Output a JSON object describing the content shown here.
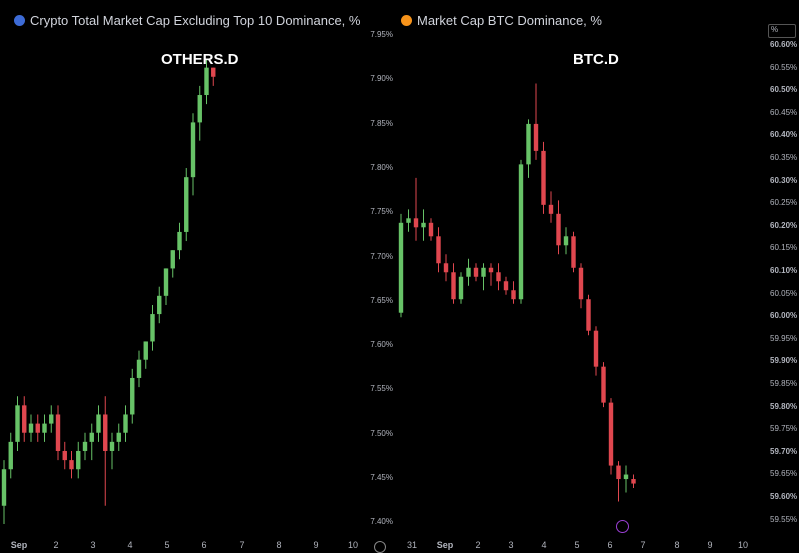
{
  "left": {
    "header": "Crypto Total Market Cap Excluding Top 10 Dominance, % ·",
    "label": "OTHERS.D",
    "x_ticks": [
      "Sep",
      "2",
      "3",
      "4",
      "5",
      "6",
      "7",
      "8",
      "9",
      "10"
    ]
  },
  "right": {
    "header": "Market Cap BTC Dominance, %",
    "label": "BTC.D",
    "x_ticks": [
      "31",
      "Sep",
      "2",
      "3",
      "4",
      "5",
      "6",
      "7",
      "8",
      "9",
      "10"
    ],
    "unit": "%"
  },
  "colors": {
    "up": "#67c267",
    "down": "#e0474f"
  },
  "chart_data": [
    {
      "type": "candlestick",
      "name": "OTHERS.D",
      "x_ticks": [
        "Sep",
        "2",
        "3",
        "4",
        "5",
        "6",
        "7",
        "8",
        "9",
        "10"
      ],
      "candles": [
        {
          "o": 7.42,
          "h": 7.47,
          "l": 7.4,
          "c": 7.46
        },
        {
          "o": 7.46,
          "h": 7.5,
          "l": 7.45,
          "c": 7.49
        },
        {
          "o": 7.49,
          "h": 7.54,
          "l": 7.48,
          "c": 7.53
        },
        {
          "o": 7.53,
          "h": 7.54,
          "l": 7.49,
          "c": 7.5
        },
        {
          "o": 7.5,
          "h": 7.52,
          "l": 7.49,
          "c": 7.51
        },
        {
          "o": 7.51,
          "h": 7.52,
          "l": 7.49,
          "c": 7.5
        },
        {
          "o": 7.5,
          "h": 7.52,
          "l": 7.49,
          "c": 7.51
        },
        {
          "o": 7.51,
          "h": 7.53,
          "l": 7.5,
          "c": 7.52
        },
        {
          "o": 7.52,
          "h": 7.53,
          "l": 7.47,
          "c": 7.48
        },
        {
          "o": 7.48,
          "h": 7.49,
          "l": 7.46,
          "c": 7.47
        },
        {
          "o": 7.47,
          "h": 7.48,
          "l": 7.45,
          "c": 7.46
        },
        {
          "o": 7.46,
          "h": 7.49,
          "l": 7.45,
          "c": 7.48
        },
        {
          "o": 7.48,
          "h": 7.5,
          "l": 7.47,
          "c": 7.49
        },
        {
          "o": 7.49,
          "h": 7.51,
          "l": 7.47,
          "c": 7.5
        },
        {
          "o": 7.5,
          "h": 7.53,
          "l": 7.49,
          "c": 7.52
        },
        {
          "o": 7.52,
          "h": 7.54,
          "l": 7.42,
          "c": 7.48
        },
        {
          "o": 7.48,
          "h": 7.5,
          "l": 7.46,
          "c": 7.49
        },
        {
          "o": 7.49,
          "h": 7.51,
          "l": 7.48,
          "c": 7.5
        },
        {
          "o": 7.5,
          "h": 7.53,
          "l": 7.49,
          "c": 7.52
        },
        {
          "o": 7.52,
          "h": 7.57,
          "l": 7.51,
          "c": 7.56
        },
        {
          "o": 7.56,
          "h": 7.59,
          "l": 7.55,
          "c": 7.58
        },
        {
          "o": 7.58,
          "h": 7.6,
          "l": 7.57,
          "c": 7.6
        },
        {
          "o": 7.6,
          "h": 7.64,
          "l": 7.59,
          "c": 7.63
        },
        {
          "o": 7.63,
          "h": 7.66,
          "l": 7.62,
          "c": 7.65
        },
        {
          "o": 7.65,
          "h": 7.68,
          "l": 7.64,
          "c": 7.68
        },
        {
          "o": 7.68,
          "h": 7.7,
          "l": 7.67,
          "c": 7.7
        },
        {
          "o": 7.7,
          "h": 7.73,
          "l": 7.69,
          "c": 7.72
        },
        {
          "o": 7.72,
          "h": 7.79,
          "l": 7.71,
          "c": 7.78
        },
        {
          "o": 7.78,
          "h": 7.85,
          "l": 7.76,
          "c": 7.84
        },
        {
          "o": 7.84,
          "h": 7.88,
          "l": 7.82,
          "c": 7.87
        },
        {
          "o": 7.87,
          "h": 7.91,
          "l": 7.86,
          "c": 7.9
        },
        {
          "o": 7.9,
          "h": 7.9,
          "l": 7.88,
          "c": 7.89
        }
      ]
    },
    {
      "type": "candlestick",
      "name": "BTC.D",
      "x_ticks": [
        "31",
        "Sep",
        "2",
        "3",
        "4",
        "5",
        "6",
        "7",
        "8",
        "9",
        "10"
      ],
      "y_ticks": [
        "7.95%",
        "7.90%",
        "7.85%",
        "7.80%",
        "7.75%",
        "7.70%",
        "7.65%",
        "7.60%",
        "7.55%",
        "7.50%",
        "7.45%",
        "7.40%"
      ],
      "y_ticks_right": [
        "60.60%",
        "60.55%",
        "60.50%",
        "60.45%",
        "60.40%",
        "60.35%",
        "60.30%",
        "60.25%",
        "60.20%",
        "60.15%",
        "60.10%",
        "60.05%",
        "60.00%",
        "59.95%",
        "59.90%",
        "59.85%",
        "59.80%",
        "59.75%",
        "59.70%",
        "59.65%",
        "59.60%",
        "59.55%"
      ],
      "ylim": [
        59.53,
        60.62
      ],
      "candles": [
        {
          "o": 60.0,
          "h": 60.22,
          "l": 59.99,
          "c": 60.2
        },
        {
          "o": 60.2,
          "h": 60.23,
          "l": 60.18,
          "c": 60.21
        },
        {
          "o": 60.21,
          "h": 60.3,
          "l": 60.16,
          "c": 60.19
        },
        {
          "o": 60.19,
          "h": 60.23,
          "l": 60.16,
          "c": 60.2
        },
        {
          "o": 60.2,
          "h": 60.21,
          "l": 60.16,
          "c": 60.17
        },
        {
          "o": 60.17,
          "h": 60.19,
          "l": 60.09,
          "c": 60.11
        },
        {
          "o": 60.11,
          "h": 60.13,
          "l": 60.07,
          "c": 60.09
        },
        {
          "o": 60.09,
          "h": 60.11,
          "l": 60.02,
          "c": 60.03
        },
        {
          "o": 60.03,
          "h": 60.09,
          "l": 60.02,
          "c": 60.08
        },
        {
          "o": 60.08,
          "h": 60.12,
          "l": 60.06,
          "c": 60.1
        },
        {
          "o": 60.1,
          "h": 60.11,
          "l": 60.07,
          "c": 60.08
        },
        {
          "o": 60.08,
          "h": 60.11,
          "l": 60.05,
          "c": 60.1
        },
        {
          "o": 60.1,
          "h": 60.11,
          "l": 60.06,
          "c": 60.09
        },
        {
          "o": 60.09,
          "h": 60.11,
          "l": 60.05,
          "c": 60.07
        },
        {
          "o": 60.07,
          "h": 60.08,
          "l": 60.04,
          "c": 60.05
        },
        {
          "o": 60.05,
          "h": 60.07,
          "l": 60.02,
          "c": 60.03
        },
        {
          "o": 60.03,
          "h": 60.34,
          "l": 60.02,
          "c": 60.33
        },
        {
          "o": 60.33,
          "h": 60.43,
          "l": 60.3,
          "c": 60.42
        },
        {
          "o": 60.42,
          "h": 60.51,
          "l": 60.34,
          "c": 60.36
        },
        {
          "o": 60.36,
          "h": 60.38,
          "l": 60.22,
          "c": 60.24
        },
        {
          "o": 60.24,
          "h": 60.27,
          "l": 60.2,
          "c": 60.22
        },
        {
          "o": 60.22,
          "h": 60.25,
          "l": 60.13,
          "c": 60.15
        },
        {
          "o": 60.15,
          "h": 60.19,
          "l": 60.13,
          "c": 60.17
        },
        {
          "o": 60.17,
          "h": 60.18,
          "l": 60.09,
          "c": 60.1
        },
        {
          "o": 60.1,
          "h": 60.11,
          "l": 60.01,
          "c": 60.03
        },
        {
          "o": 60.03,
          "h": 60.04,
          "l": 59.95,
          "c": 59.96
        },
        {
          "o": 59.96,
          "h": 59.97,
          "l": 59.86,
          "c": 59.88
        },
        {
          "o": 59.88,
          "h": 59.89,
          "l": 59.79,
          "c": 59.8
        },
        {
          "o": 59.8,
          "h": 59.81,
          "l": 59.64,
          "c": 59.66
        },
        {
          "o": 59.66,
          "h": 59.67,
          "l": 59.58,
          "c": 59.63
        },
        {
          "o": 59.63,
          "h": 59.66,
          "l": 59.6,
          "c": 59.64
        },
        {
          "o": 59.63,
          "h": 59.64,
          "l": 59.61,
          "c": 59.62
        }
      ]
    }
  ]
}
